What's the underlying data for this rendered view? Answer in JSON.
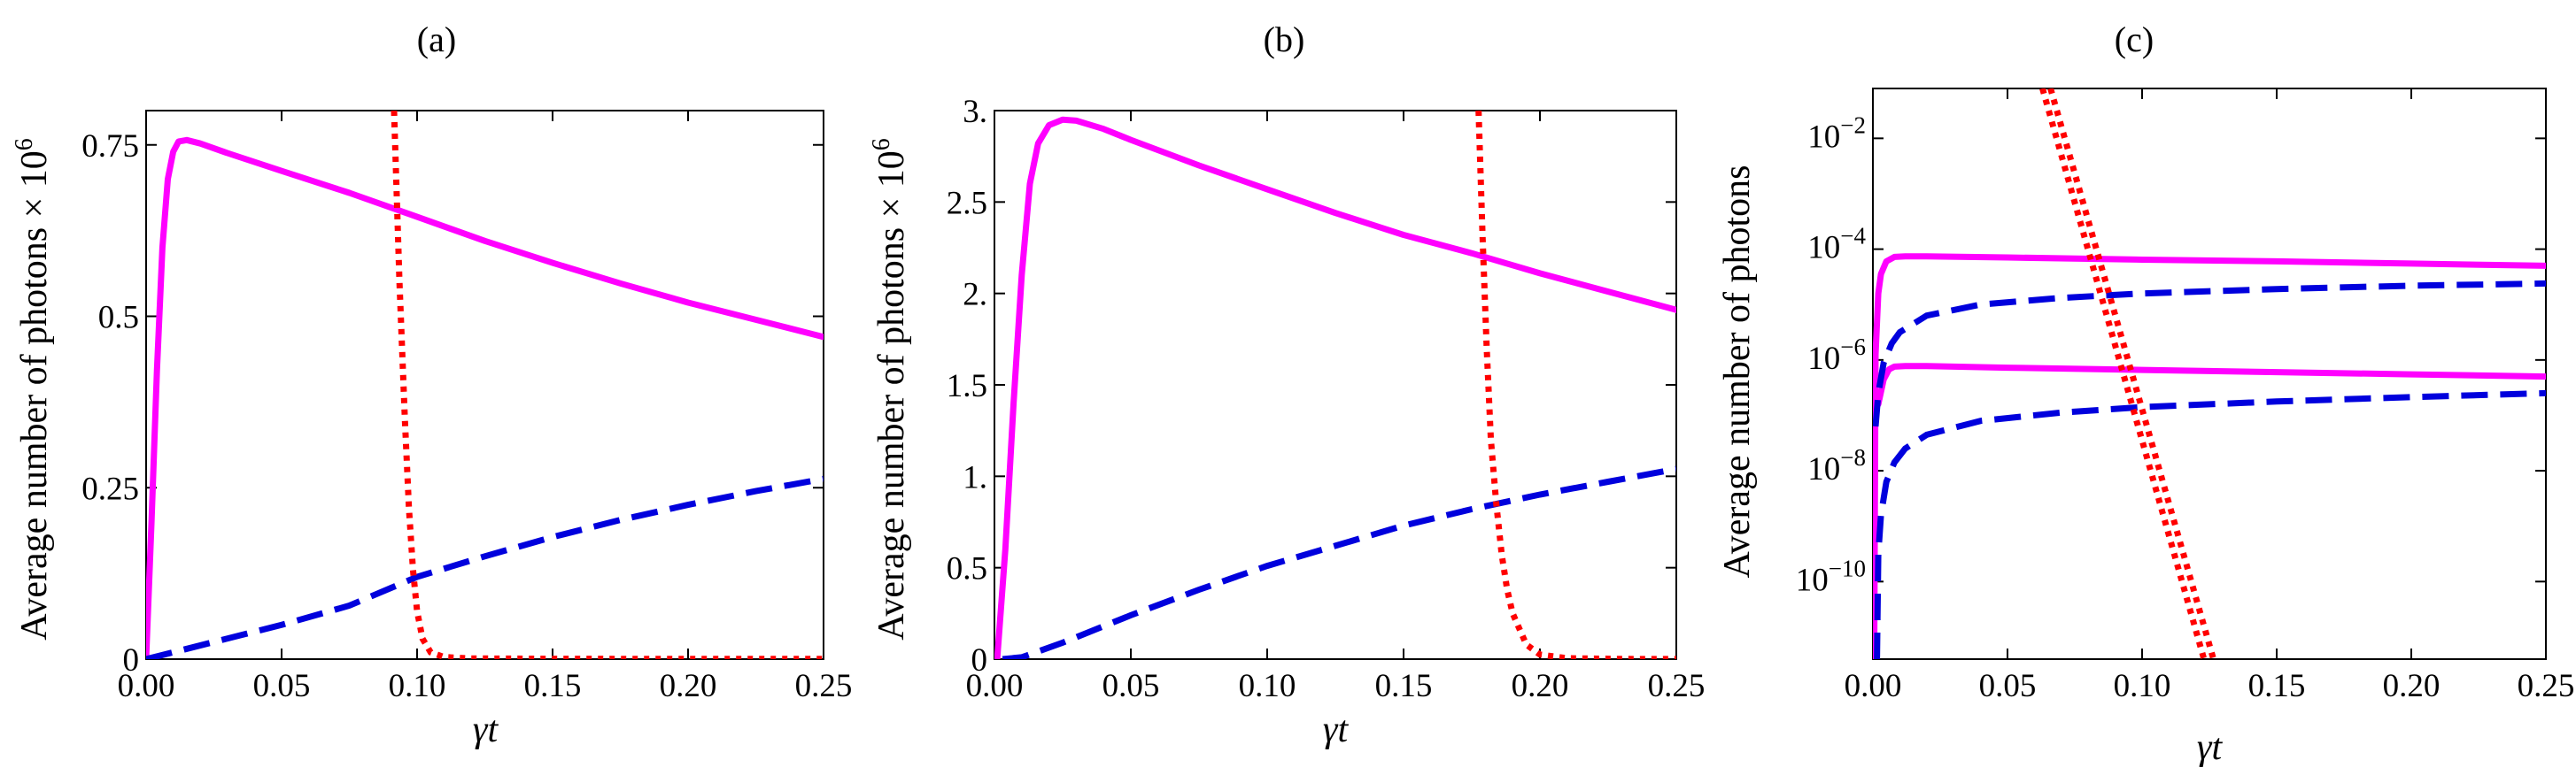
{
  "chart_data": [
    {
      "type": "line",
      "panel_label": "(a)",
      "xlabel": "γt",
      "ylabel": "Average number of photons × 10",
      "ylabel_exponent": "6",
      "xlim": [
        0,
        0.25
      ],
      "ylim": [
        0,
        0.8
      ],
      "yscale": "linear",
      "x_ticks": [
        0,
        0.05,
        0.1,
        0.15,
        0.2,
        0.25
      ],
      "x_tick_labels": [
        "0.00",
        "0.05",
        "0.10",
        "0.15",
        "0.20",
        "0.25"
      ],
      "y_ticks": [
        0,
        0.25,
        0.5,
        0.75
      ],
      "y_tick_labels": [
        "0",
        "0.25",
        "0.5",
        "0.75"
      ],
      "series": [
        {
          "name": "solid",
          "style": "solid",
          "color": "#ff00ff",
          "x": [
            0,
            0.002,
            0.004,
            0.006,
            0.008,
            0.01,
            0.012,
            0.015,
            0.02,
            0.03,
            0.05,
            0.075,
            0.1,
            0.125,
            0.15,
            0.175,
            0.2,
            0.225,
            0.25
          ],
          "y": [
            0,
            0.2,
            0.42,
            0.6,
            0.7,
            0.74,
            0.755,
            0.757,
            0.752,
            0.738,
            0.712,
            0.68,
            0.645,
            0.61,
            0.578,
            0.548,
            0.52,
            0.495,
            0.47
          ]
        },
        {
          "name": "dashed",
          "style": "dashed",
          "color": "#0000dd",
          "x": [
            0,
            0.025,
            0.05,
            0.075,
            0.1,
            0.125,
            0.15,
            0.175,
            0.2,
            0.225,
            0.25
          ],
          "y": [
            0,
            0.025,
            0.05,
            0.078,
            0.12,
            0.15,
            0.178,
            0.203,
            0.225,
            0.245,
            0.263
          ]
        },
        {
          "name": "dotted",
          "style": "dotted",
          "color": "#ff0000",
          "x": [
            0.0915,
            0.0935,
            0.0955,
            0.097,
            0.0985,
            0.1,
            0.102,
            0.105,
            0.11,
            0.12,
            0.15,
            0.2,
            0.25
          ],
          "y": [
            0.8,
            0.55,
            0.35,
            0.22,
            0.13,
            0.07,
            0.03,
            0.01,
            0.003,
            0.001,
            0.0005,
            0.0003,
            0.0002
          ]
        }
      ]
    },
    {
      "type": "line",
      "panel_label": "(b)",
      "xlabel": "γt",
      "ylabel": "Average number of photons × 10",
      "ylabel_exponent": "6",
      "xlim": [
        0,
        0.25
      ],
      "ylim": [
        0,
        3
      ],
      "yscale": "linear",
      "x_ticks": [
        0,
        0.05,
        0.1,
        0.15,
        0.2,
        0.25
      ],
      "x_tick_labels": [
        "0.00",
        "0.05",
        "0.10",
        "0.15",
        "0.20",
        "0.25"
      ],
      "y_ticks": [
        0,
        0.5,
        1,
        1.5,
        2,
        2.5,
        3
      ],
      "y_tick_labels": [
        "0",
        "0.5",
        "1.",
        "1.5",
        "2.",
        "2.5",
        "3."
      ],
      "series": [
        {
          "name": "solid",
          "style": "solid",
          "color": "#ff00ff",
          "x": [
            0.001,
            0.004,
            0.007,
            0.01,
            0.013,
            0.016,
            0.02,
            0.025,
            0.03,
            0.04,
            0.05,
            0.075,
            0.1,
            0.125,
            0.15,
            0.175,
            0.2,
            0.225,
            0.25
          ],
          "y": [
            0,
            0.6,
            1.4,
            2.1,
            2.6,
            2.82,
            2.92,
            2.95,
            2.945,
            2.9,
            2.84,
            2.7,
            2.57,
            2.44,
            2.32,
            2.22,
            2.11,
            2.01,
            1.91
          ]
        },
        {
          "name": "dashed",
          "style": "dashed",
          "color": "#0000dd",
          "x": [
            0.003,
            0.01,
            0.025,
            0.05,
            0.075,
            0.1,
            0.125,
            0.15,
            0.175,
            0.2,
            0.225,
            0.25
          ],
          "y": [
            0,
            0.01,
            0.09,
            0.24,
            0.38,
            0.51,
            0.62,
            0.73,
            0.82,
            0.9,
            0.97,
            1.04
          ]
        },
        {
          "name": "dotted",
          "style": "dotted",
          "color": "#ff0000",
          "x": [
            0.1775,
            0.179,
            0.1805,
            0.182,
            0.184,
            0.186,
            0.188,
            0.19,
            0.195,
            0.2,
            0.21,
            0.23,
            0.25
          ],
          "y": [
            3.0,
            2.3,
            1.7,
            1.2,
            0.85,
            0.57,
            0.38,
            0.25,
            0.08,
            0.025,
            0.005,
            0.001,
            0.0005
          ]
        }
      ]
    },
    {
      "type": "line",
      "panel_label": "(c)",
      "xlabel": "γt",
      "ylabel": "Average number of photons",
      "xlim": [
        0,
        0.25
      ],
      "ylim_log10": [
        -11.4,
        -1.1
      ],
      "yscale": "log",
      "x_ticks": [
        0,
        0.05,
        0.1,
        0.15,
        0.2,
        0.25
      ],
      "x_tick_labels": [
        "0.00",
        "0.05",
        "0.10",
        "0.15",
        "0.20",
        "0.25"
      ],
      "y_ticks_log10": [
        -10,
        -8,
        -6,
        -4,
        -2
      ],
      "y_tick_base": "10",
      "y_tick_exponents": [
        "−10",
        "−8",
        "−6",
        "−4",
        "−2"
      ],
      "series": [
        {
          "name": "solid upper",
          "style": "solid",
          "color": "#ff00ff",
          "x": [
            0.0005,
            0.001,
            0.002,
            0.003,
            0.005,
            0.008,
            0.012,
            0.02,
            0.05,
            0.1,
            0.15,
            0.2,
            0.25
          ],
          "log10_y": [
            -11.4,
            -5.9,
            -4.8,
            -4.45,
            -4.22,
            -4.14,
            -4.13,
            -4.13,
            -4.15,
            -4.19,
            -4.22,
            -4.26,
            -4.3
          ]
        },
        {
          "name": "solid lower",
          "style": "solid",
          "color": "#ff00ff",
          "x": [
            0.002,
            0.004,
            0.006,
            0.008,
            0.012,
            0.02,
            0.05,
            0.1,
            0.15,
            0.2,
            0.25
          ],
          "log10_y": [
            -6.8,
            -6.35,
            -6.17,
            -6.12,
            -6.11,
            -6.11,
            -6.14,
            -6.18,
            -6.22,
            -6.26,
            -6.3
          ]
        },
        {
          "name": "dashed upper",
          "style": "dashed",
          "color": "#0000dd",
          "x": [
            0.001,
            0.002,
            0.004,
            0.007,
            0.01,
            0.02,
            0.04,
            0.07,
            0.1,
            0.15,
            0.2,
            0.25
          ],
          "log10_y": [
            -7.2,
            -6.6,
            -6.05,
            -5.7,
            -5.5,
            -5.2,
            -5.0,
            -4.88,
            -4.8,
            -4.72,
            -4.66,
            -4.62
          ]
        },
        {
          "name": "dashed lower",
          "style": "dashed",
          "color": "#0000dd",
          "x": [
            0.0015,
            0.002,
            0.003,
            0.005,
            0.008,
            0.012,
            0.02,
            0.04,
            0.07,
            0.1,
            0.15,
            0.2,
            0.25
          ],
          "log10_y": [
            -11.4,
            -9.5,
            -8.8,
            -8.2,
            -7.85,
            -7.6,
            -7.35,
            -7.1,
            -6.95,
            -6.85,
            -6.75,
            -6.67,
            -6.6
          ]
        },
        {
          "name": "dotted 1",
          "style": "dotted",
          "color": "#ff0000",
          "x": [
            0.063,
            0.123
          ],
          "log10_y": [
            -1.1,
            -11.4
          ]
        },
        {
          "name": "dotted 2",
          "style": "dotted",
          "color": "#ff0000",
          "x": [
            0.066,
            0.1265
          ],
          "log10_y": [
            -1.1,
            -11.4
          ]
        }
      ]
    }
  ]
}
